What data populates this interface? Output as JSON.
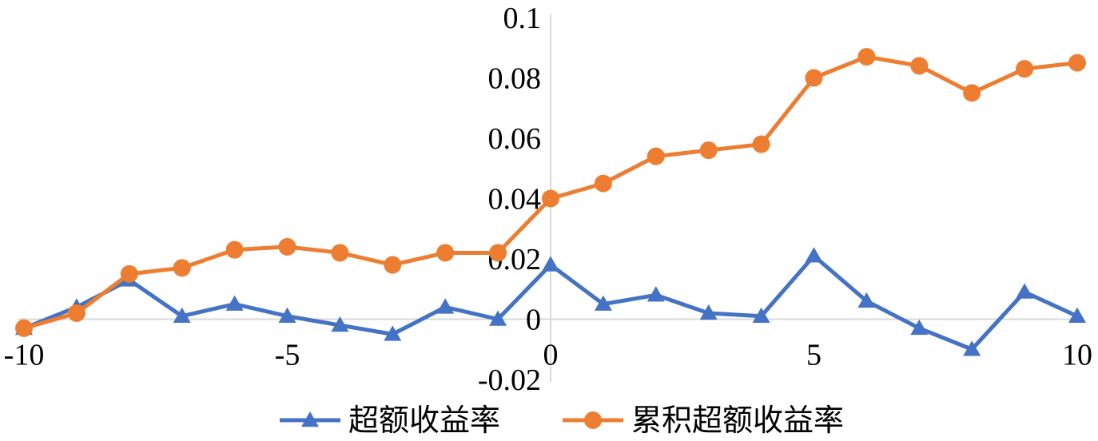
{
  "chart_data": {
    "type": "line",
    "x": [
      -10,
      -9,
      -8,
      -7,
      -6,
      -5,
      -4,
      -3,
      -2,
      -1,
      0,
      1,
      2,
      3,
      4,
      5,
      6,
      7,
      8,
      9,
      10
    ],
    "series": [
      {
        "name": "超额收益率",
        "color": "#4472C4",
        "marker": "triangle",
        "values": [
          -0.003,
          0.004,
          0.013,
          0.001,
          0.005,
          0.001,
          -0.002,
          -0.005,
          0.004,
          0.0,
          0.018,
          0.005,
          0.008,
          0.002,
          0.001,
          0.021,
          0.006,
          -0.003,
          -0.01,
          0.009,
          0.001
        ]
      },
      {
        "name": "累积超额收益率",
        "color": "#ED7D31",
        "marker": "circle",
        "values": [
          -0.003,
          0.002,
          0.015,
          0.017,
          0.023,
          0.024,
          0.022,
          0.018,
          0.022,
          0.022,
          0.04,
          0.045,
          0.054,
          0.056,
          0.058,
          0.08,
          0.087,
          0.084,
          0.075,
          0.083,
          0.085
        ]
      }
    ],
    "xlim": [
      -10,
      10
    ],
    "ylim": [
      -0.02,
      0.1
    ],
    "x_ticks": [
      -10,
      -5,
      0,
      5,
      10
    ],
    "x_tick_labels": [
      "-10",
      "-5",
      "0",
      "5",
      "10"
    ],
    "y_ticks": [
      -0.02,
      0,
      0.02,
      0.04,
      0.06,
      0.08,
      0.1
    ],
    "y_tick_labels": [
      "-0.02",
      "0",
      "0.02",
      "0.04",
      "0.06",
      "0.08",
      "0.1"
    ],
    "legend_position": "bottom",
    "grid": false
  }
}
